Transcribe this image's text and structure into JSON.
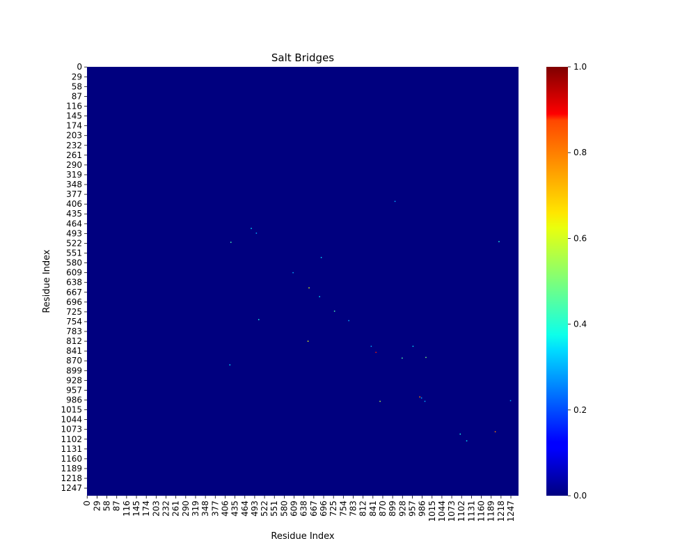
{
  "chart_data": {
    "type": "heatmap",
    "title": "Salt Bridges",
    "xlabel": "Residue Index",
    "ylabel": "Residue Index",
    "n": 1270,
    "x_ticks": [
      0,
      29,
      58,
      87,
      116,
      145,
      174,
      203,
      232,
      261,
      290,
      319,
      348,
      377,
      406,
      435,
      464,
      493,
      522,
      551,
      580,
      609,
      638,
      667,
      696,
      725,
      754,
      783,
      812,
      841,
      870,
      899,
      928,
      957,
      986,
      1015,
      1044,
      1073,
      1102,
      1131,
      1160,
      1189,
      1218,
      1247
    ],
    "y_ticks": [
      0,
      29,
      58,
      87,
      116,
      145,
      174,
      203,
      232,
      261,
      290,
      319,
      348,
      377,
      406,
      435,
      464,
      493,
      522,
      551,
      580,
      609,
      638,
      667,
      696,
      725,
      754,
      783,
      812,
      841,
      870,
      899,
      928,
      957,
      986,
      1015,
      1044,
      1073,
      1102,
      1131,
      1160,
      1189,
      1218,
      1247
    ],
    "x_tick_labels": [
      "0",
      "29",
      "58",
      "87",
      "116",
      "145",
      "174",
      "203",
      "232",
      "261",
      "290",
      "319",
      "348",
      "377",
      "406",
      "435",
      "464",
      "493",
      "522",
      "551",
      "580",
      "609",
      "638",
      "667",
      "696",
      "725",
      "754",
      "783",
      "812",
      "841",
      "870",
      "899",
      "928",
      "957",
      "986",
      "1015",
      "1044",
      "1073",
      "1102",
      "1131",
      "1160",
      "1189",
      "1218",
      "1247"
    ],
    "y_tick_labels": [
      "0",
      "29",
      "58",
      "87",
      "116",
      "145",
      "174",
      "203",
      "232",
      "261",
      "290",
      "319",
      "348",
      "377",
      "406",
      "435",
      "464",
      "493",
      "522",
      "551",
      "580",
      "609",
      "638",
      "667",
      "696",
      "725",
      "754",
      "783",
      "812",
      "841",
      "870",
      "899",
      "928",
      "957",
      "986",
      "1015",
      "1044",
      "1073",
      "1102",
      "1131",
      "1160",
      "1189",
      "1218",
      "1247"
    ],
    "colormap": "jet",
    "colorbar": {
      "range": [
        0.0,
        1.0
      ],
      "ticks": [
        0.0,
        0.2,
        0.4,
        0.6,
        0.8,
        1.0
      ],
      "tick_labels": [
        "0.0",
        "0.2",
        "0.4",
        "0.6",
        "0.8",
        "1.0"
      ]
    },
    "background_value": 0.0,
    "points": [
      {
        "x": 906,
        "y": 398,
        "value": 0.3
      },
      {
        "x": 483,
        "y": 478,
        "value": 0.35
      },
      {
        "x": 498,
        "y": 492,
        "value": 0.3
      },
      {
        "x": 423,
        "y": 519,
        "value": 0.45
      },
      {
        "x": 1212,
        "y": 517,
        "value": 0.4
      },
      {
        "x": 689,
        "y": 564,
        "value": 0.35
      },
      {
        "x": 606,
        "y": 609,
        "value": 0.3
      },
      {
        "x": 653,
        "y": 654,
        "value": 0.6
      },
      {
        "x": 684,
        "y": 680,
        "value": 0.35
      },
      {
        "x": 728,
        "y": 723,
        "value": 0.45
      },
      {
        "x": 505,
        "y": 748,
        "value": 0.4
      },
      {
        "x": 770,
        "y": 751,
        "value": 0.3
      },
      {
        "x": 650,
        "y": 812,
        "value": 0.6
      },
      {
        "x": 836,
        "y": 827,
        "value": 0.3
      },
      {
        "x": 959,
        "y": 827,
        "value": 0.35
      },
      {
        "x": 850,
        "y": 845,
        "value": 0.85
      },
      {
        "x": 927,
        "y": 862,
        "value": 0.45
      },
      {
        "x": 997,
        "y": 860,
        "value": 0.5
      },
      {
        "x": 420,
        "y": 882,
        "value": 0.35
      },
      {
        "x": 979,
        "y": 977,
        "value": 0.75
      },
      {
        "x": 984,
        "y": 980,
        "value": 0.3
      },
      {
        "x": 862,
        "y": 990,
        "value": 0.55
      },
      {
        "x": 994,
        "y": 990,
        "value": 0.3
      },
      {
        "x": 1246,
        "y": 988,
        "value": 0.3
      },
      {
        "x": 1201,
        "y": 1080,
        "value": 0.75
      },
      {
        "x": 1098,
        "y": 1087,
        "value": 0.4
      },
      {
        "x": 1117,
        "y": 1107,
        "value": 0.35
      }
    ]
  }
}
